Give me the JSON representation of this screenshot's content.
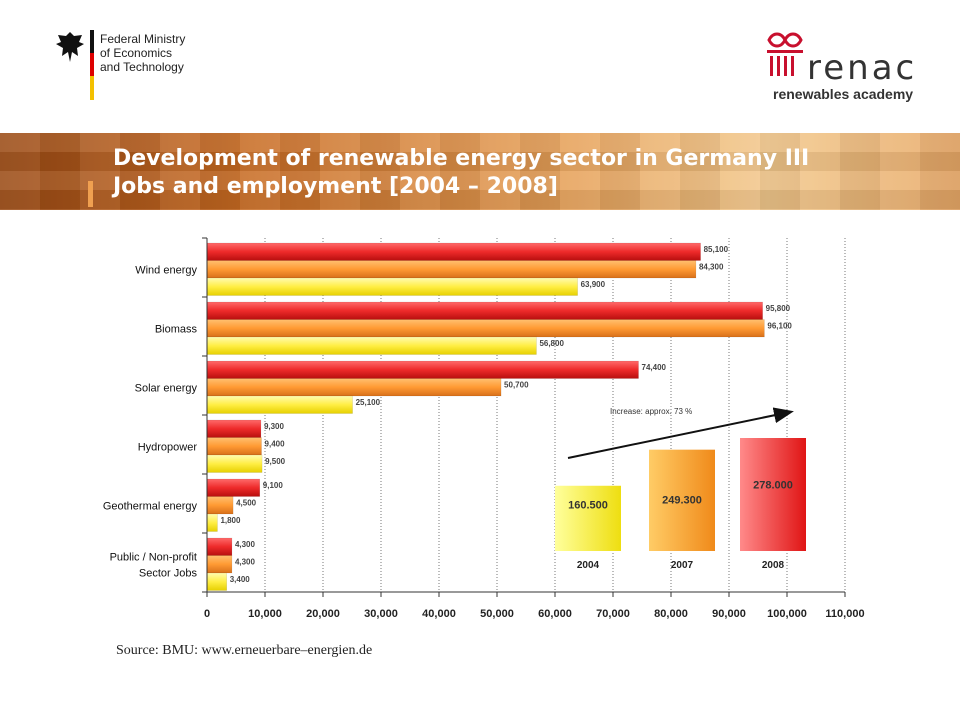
{
  "header": {
    "ministry_name_line1": "Federal Ministry",
    "ministry_name_line2": "of Economics",
    "ministry_name_line3": "and Technology",
    "partner_logo_word": "renac",
    "partner_logo_sub": "renewables academy",
    "title_line1": "Development of renewable energy sector in Germany III",
    "title_line2": "Jobs and employment [2004 – 2008]"
  },
  "colors": {
    "series_2004": "#ffee44",
    "series_2007": "#ff9a33",
    "series_2008": "#ee2a2a",
    "banner": "#c76a22"
  },
  "chart_data": {
    "type": "bar",
    "orientation": "horizontal",
    "categories": [
      "Wind energy",
      "Biomass",
      "Solar energy",
      "Hydropower",
      "Geothermal energy",
      "Public / Non-profit Sector Jobs"
    ],
    "category_labels": [
      [
        "Wind energy"
      ],
      [
        "Biomass"
      ],
      [
        "Solar energy"
      ],
      [
        "Hydropower"
      ],
      [
        "Geothermal energy"
      ],
      [
        "Public / Non-profit",
        "Sector Jobs"
      ]
    ],
    "series": [
      {
        "name": "2008",
        "color": "#ee2a2a",
        "values": [
          85100,
          95800,
          74400,
          9300,
          9100,
          4300
        ],
        "labels": [
          "85,100",
          "95,800",
          "74,400",
          "9,300",
          "9,100",
          "4,300"
        ]
      },
      {
        "name": "2007",
        "color": "#ff9a33",
        "values": [
          84300,
          96100,
          50700,
          9400,
          4500,
          4300
        ],
        "labels": [
          "84,300",
          "96,100",
          "50,700",
          "9,400",
          "4,500",
          "4,300"
        ]
      },
      {
        "name": "2004",
        "color": "#ffee44",
        "values": [
          63900,
          56800,
          25100,
          9500,
          1800,
          3400
        ],
        "labels": [
          "63,900",
          "56,800",
          "25,100",
          "9,500",
          "1,800",
          "3,400"
        ]
      }
    ],
    "xlim": [
      0,
      110000
    ],
    "xticks": [
      0,
      10000,
      20000,
      30000,
      40000,
      50000,
      60000,
      70000,
      80000,
      90000,
      100000,
      110000
    ],
    "xtick_labels": [
      "0",
      "10,000",
      "20,000",
      "30,000",
      "40,000",
      "50,000",
      "60,000",
      "70,000",
      "80,000",
      "90,000",
      "100,000",
      "110,000"
    ],
    "grid": "vertical dotted",
    "inset": {
      "type": "bar",
      "categories": [
        "2004",
        "2007",
        "2008"
      ],
      "values": [
        160500,
        249300,
        278000
      ],
      "labels": [
        "160.500",
        "249.300",
        "278.000"
      ],
      "colors": [
        "#ffee44",
        "#ff9a33",
        "#ee2a2a"
      ],
      "annotation": "Increase: approx. 73 %"
    }
  },
  "footer": {
    "source": "Source: BMU: www.erneuerbare–energien.de"
  }
}
